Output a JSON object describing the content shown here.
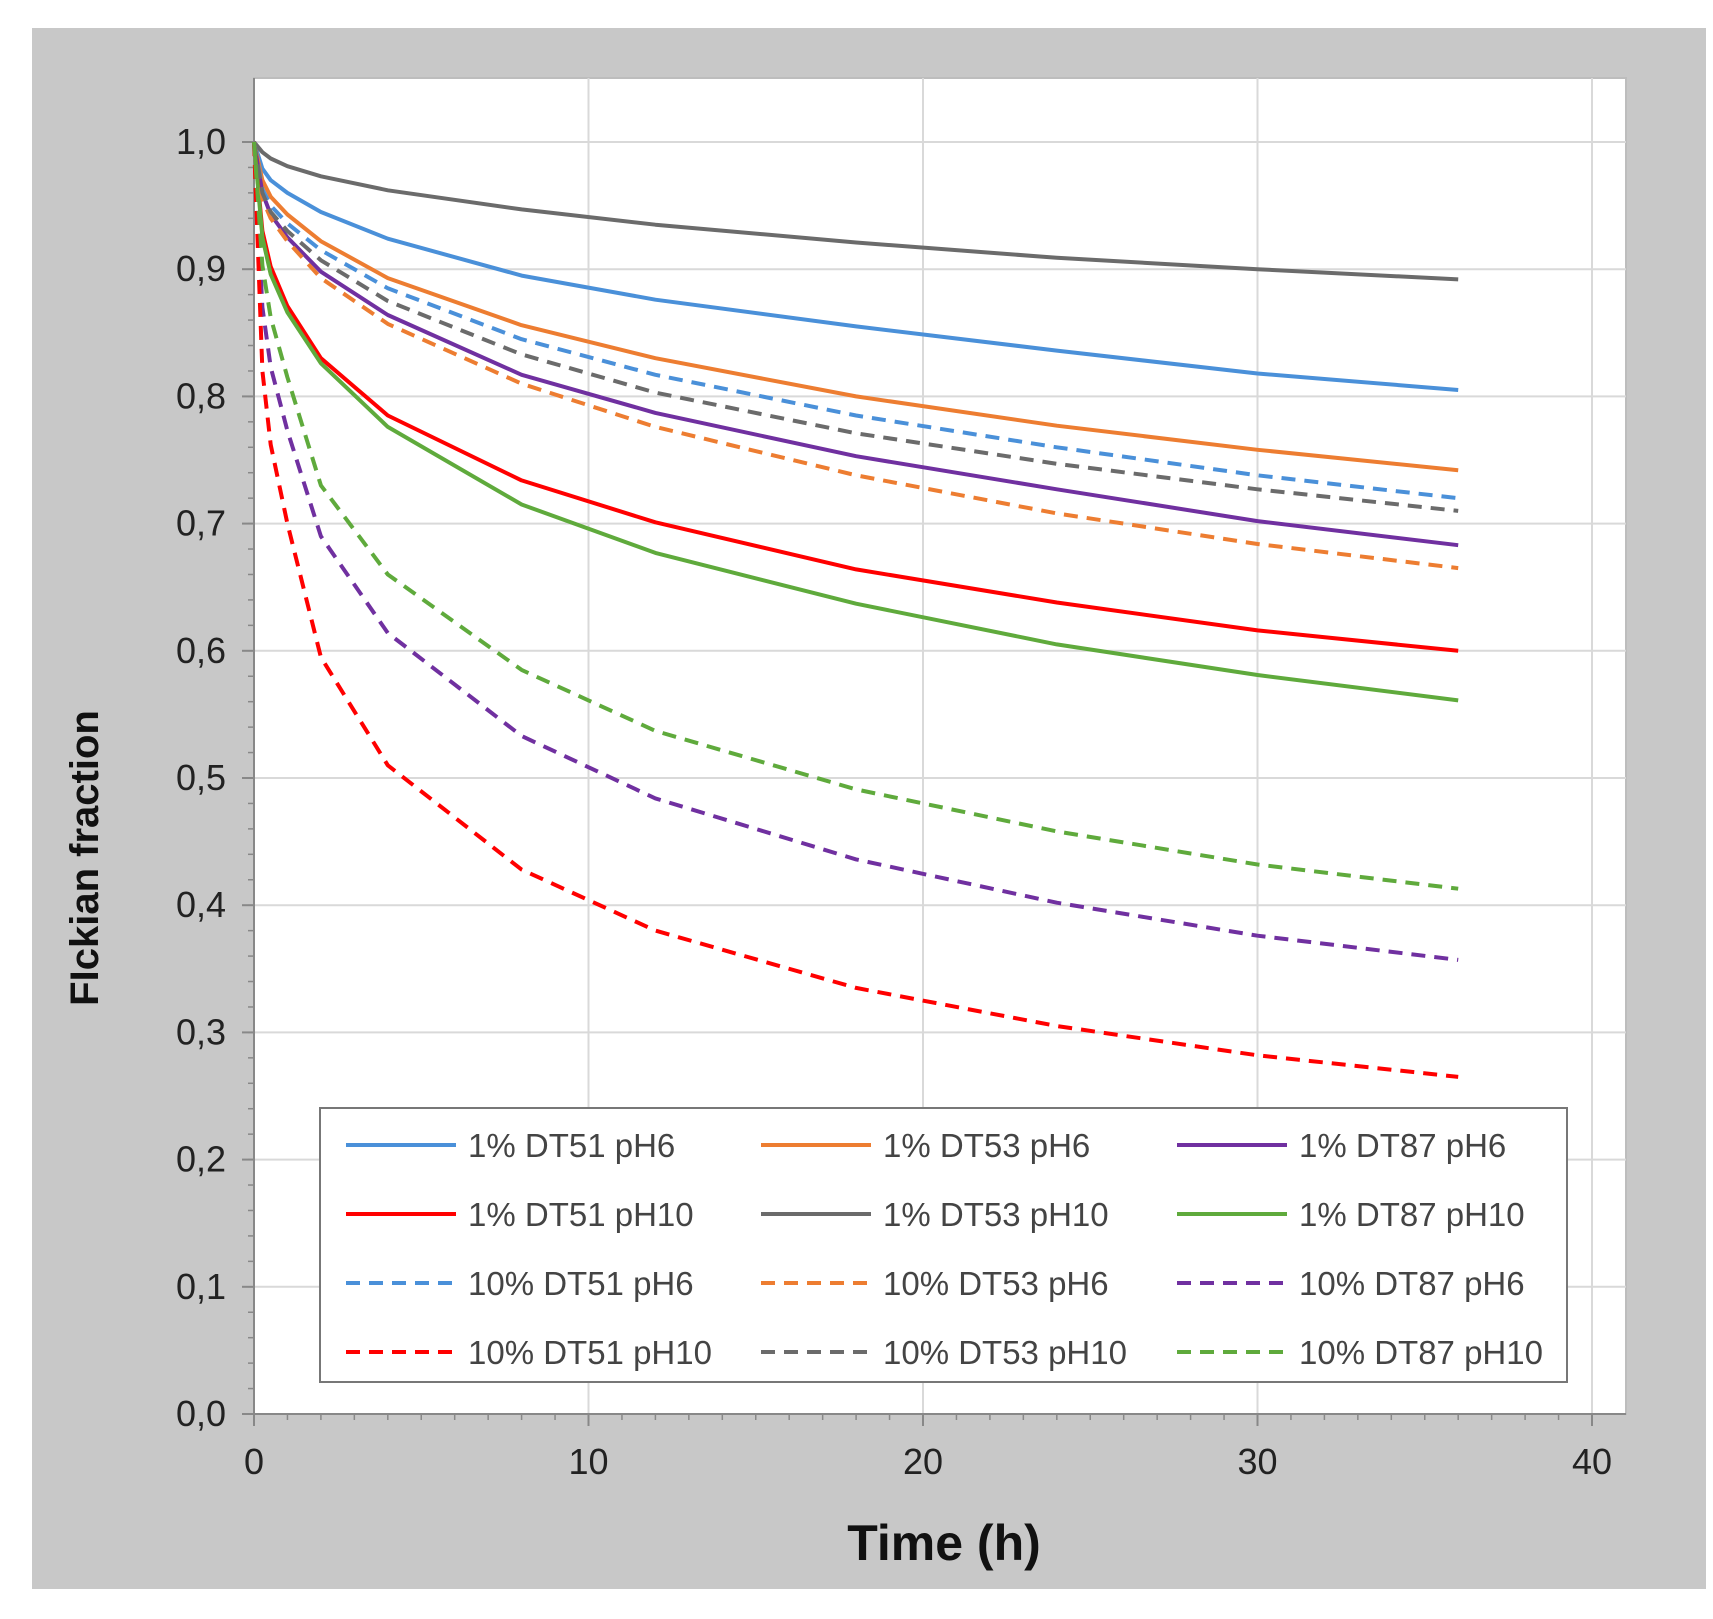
{
  "chart_data": {
    "type": "line",
    "title": "",
    "xlabel": "Time  (h)",
    "ylabel": "FIckian fraction",
    "xlim": [
      0,
      40
    ],
    "ylim": [
      0,
      1.0
    ],
    "x_ticks": [
      "0",
      "10",
      "20",
      "30",
      "40"
    ],
    "y_ticks": [
      "0,0",
      "0,1",
      "0,2",
      "0,3",
      "0,4",
      "0,5",
      "0,6",
      "0,7",
      "0,8",
      "0,9",
      "1,0"
    ],
    "grid": true,
    "legend_position": "bottom-right",
    "x": [
      0,
      0.25,
      0.5,
      1,
      2,
      4,
      8,
      12,
      18,
      24,
      30,
      36
    ],
    "series": [
      {
        "name": "1% DT51 pH6",
        "color": "#4a90d9",
        "dash": false,
        "values": [
          1.0,
          0.979,
          0.97,
          0.96,
          0.945,
          0.924,
          0.895,
          0.876,
          0.855,
          0.836,
          0.818,
          0.805
        ]
      },
      {
        "name": "1% DT53 pH6",
        "color": "#ed7d31",
        "dash": false,
        "values": [
          1.0,
          0.97,
          0.957,
          0.943,
          0.922,
          0.893,
          0.856,
          0.83,
          0.8,
          0.777,
          0.758,
          0.742
        ]
      },
      {
        "name": "1% DT87 pH6",
        "color": "#7030a0",
        "dash": false,
        "values": [
          1.0,
          0.96,
          0.943,
          0.925,
          0.898,
          0.864,
          0.817,
          0.787,
          0.753,
          0.727,
          0.702,
          0.683
        ]
      },
      {
        "name": "1% DT51 pH10",
        "color": "#ff0000",
        "dash": false,
        "values": [
          1.0,
          0.93,
          0.902,
          0.871,
          0.83,
          0.785,
          0.734,
          0.701,
          0.664,
          0.638,
          0.616,
          0.6
        ]
      },
      {
        "name": "1% DT53 pH10",
        "color": "#6b6b6b",
        "dash": false,
        "values": [
          1.0,
          0.992,
          0.987,
          0.981,
          0.973,
          0.962,
          0.947,
          0.935,
          0.921,
          0.909,
          0.9,
          0.892
        ]
      },
      {
        "name": "1% DT87 pH10",
        "color": "#5faa3c",
        "dash": false,
        "values": [
          1.0,
          0.925,
          0.896,
          0.866,
          0.826,
          0.776,
          0.715,
          0.677,
          0.637,
          0.605,
          0.581,
          0.561
        ]
      },
      {
        "name": "10% DT51 pH6",
        "color": "#4a90d9",
        "dash": true,
        "values": [
          1.0,
          0.963,
          0.95,
          0.936,
          0.915,
          0.885,
          0.845,
          0.817,
          0.785,
          0.76,
          0.738,
          0.72
        ]
      },
      {
        "name": "10% DT53 pH6",
        "color": "#ed7d31",
        "dash": true,
        "values": [
          1.0,
          0.955,
          0.94,
          0.922,
          0.893,
          0.857,
          0.81,
          0.776,
          0.738,
          0.708,
          0.684,
          0.665
        ]
      },
      {
        "name": "10% DT87 pH6",
        "color": "#7030a0",
        "dash": true,
        "values": [
          1.0,
          0.87,
          0.823,
          0.773,
          0.69,
          0.614,
          0.533,
          0.484,
          0.436,
          0.402,
          0.376,
          0.357
        ]
      },
      {
        "name": "10% DT51 pH10",
        "color": "#ff0000",
        "dash": true,
        "values": [
          1.0,
          0.82,
          0.762,
          0.7,
          0.595,
          0.51,
          0.428,
          0.38,
          0.335,
          0.305,
          0.282,
          0.265
        ]
      },
      {
        "name": "10% DT53 pH10",
        "color": "#6b6b6b",
        "dash": true,
        "values": [
          1.0,
          0.96,
          0.945,
          0.93,
          0.907,
          0.875,
          0.833,
          0.803,
          0.771,
          0.747,
          0.727,
          0.71
        ]
      },
      {
        "name": "10% DT87 pH10",
        "color": "#5faa3c",
        "dash": true,
        "values": [
          1.0,
          0.903,
          0.862,
          0.815,
          0.73,
          0.66,
          0.585,
          0.537,
          0.491,
          0.458,
          0.432,
          0.413
        ]
      }
    ]
  }
}
